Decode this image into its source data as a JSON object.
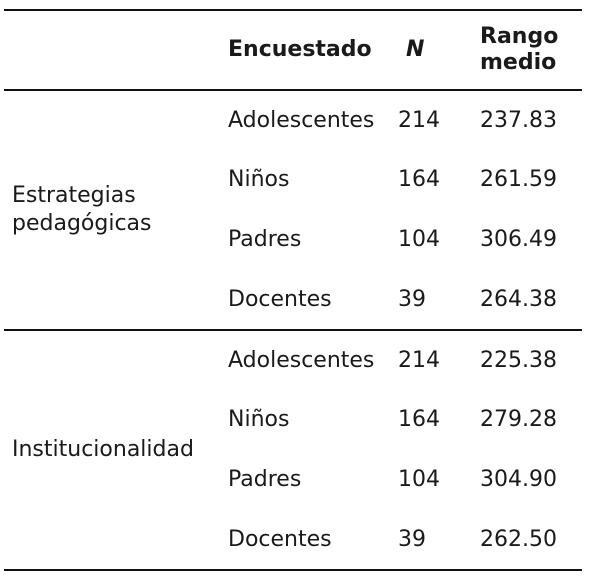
{
  "headers": {
    "group": "",
    "respondent": "Encuestado",
    "n": "N",
    "rank_line1": "Rango",
    "rank_line2": "medio"
  },
  "sections": [
    {
      "label_line1": "Estrategias",
      "label_line2": "pedagógicas",
      "rows": [
        {
          "respondent": "Adolescentes",
          "n": "214",
          "rank": "237.83"
        },
        {
          "respondent": "Niños",
          "n": "164",
          "rank": "261.59"
        },
        {
          "respondent": "Padres",
          "n": "104",
          "rank": "306.49"
        },
        {
          "respondent": "Docentes",
          "n": "39",
          "rank": "264.38"
        }
      ]
    },
    {
      "label_line1": "Institucionalidad",
      "label_line2": "",
      "rows": [
        {
          "respondent": "Adolescentes",
          "n": "214",
          "rank": "225.38"
        },
        {
          "respondent": "Niños",
          "n": "164",
          "rank": "279.28"
        },
        {
          "respondent": "Padres",
          "n": "104",
          "rank": "304.90"
        },
        {
          "respondent": "Docentes",
          "n": "39",
          "rank": "262.50"
        }
      ]
    }
  ]
}
